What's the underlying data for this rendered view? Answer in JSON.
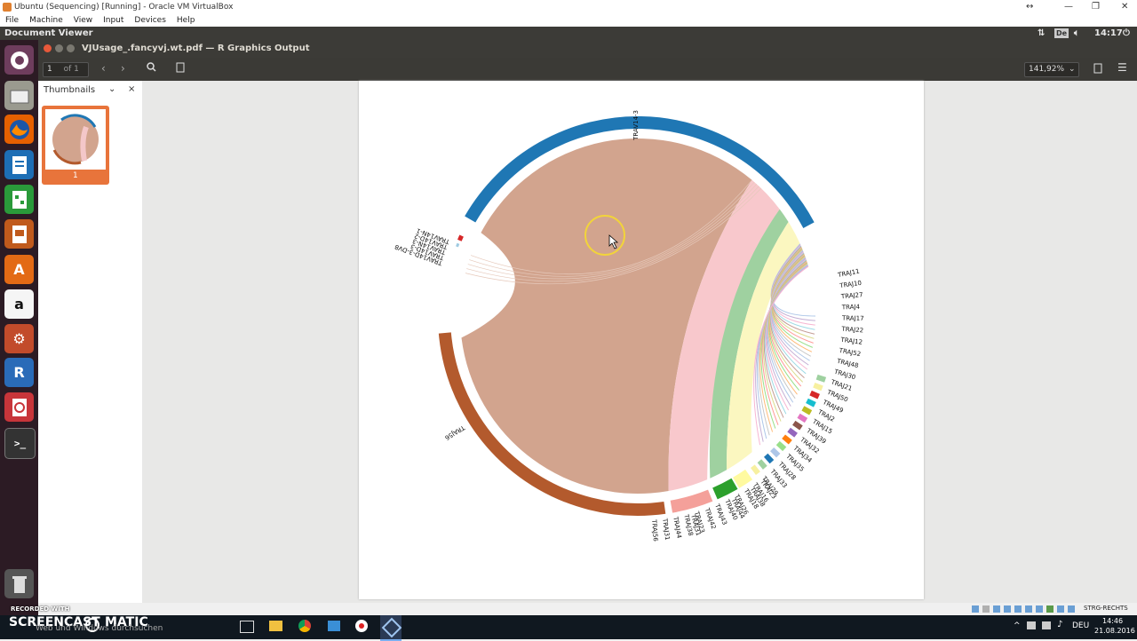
{
  "host_window": {
    "title": "Ubuntu (Sequencing) [Running] - Oracle VM VirtualBox",
    "menu": [
      "File",
      "Machine",
      "View",
      "Input",
      "Devices",
      "Help"
    ]
  },
  "ubuntu_panel": {
    "app_name": "Document Viewer",
    "keyboard_layout": "De",
    "clock": "14:17"
  },
  "launcher": {
    "items": [
      "ubuntu-dash",
      "files",
      "firefox",
      "libreoffice-writer",
      "libreoffice-calc",
      "libreoffice-impress",
      "ubuntu-software",
      "amazon",
      "system-settings",
      "r-app",
      "document-viewer",
      "terminal",
      "trash"
    ]
  },
  "viewer": {
    "window_title": "VJUsage_.fancyvj.wt.pdf — R Graphics Output",
    "page_number": "1",
    "page_of": "of 1",
    "zoom": "141,92%",
    "sidebar_title": "Thumbnails",
    "thumbnail_page_label": "1"
  },
  "chart_data": {
    "type": "chord",
    "top_sectors": [
      {
        "name": "TRAV14-3",
        "color": "#1f77b4"
      },
      {
        "name": "TRAV14N-1",
        "color": "#d62728"
      },
      {
        "name": "TRAV14D-2",
        "color": "#1f77b4"
      },
      {
        "name": "TRAV14D-3-DV8",
        "color": "#9ecae1"
      }
    ],
    "left_labels": [
      "TRAV14N-1",
      "TRAV14D-2",
      "TRAV14N-3",
      "TRAV14D-3",
      "TRAV14D-3-DV8"
    ],
    "bottom_sectors": [
      {
        "name": "TRAJ56",
        "color": "#b35a2d"
      },
      {
        "name": "TRAJ31",
        "color": "#f4a09a"
      },
      {
        "name": "TRAJ44",
        "color": "#2ca02c"
      },
      {
        "name": "TRAJ38",
        "color": "#fffaa0"
      },
      {
        "name": "TRAJ23",
        "color": "#f7f0a0"
      },
      {
        "name": "TRAJ42",
        "color": "#9fd1a0"
      },
      {
        "name": "TRAJ43",
        "color": "#1f77b4"
      },
      {
        "name": "TRAJ40",
        "color": "#aec7e8"
      },
      {
        "name": "TRAJ26",
        "color": "#98df8a"
      },
      {
        "name": "TRAJ16",
        "color": "#ff7f0e"
      },
      {
        "name": "TRAJ29",
        "color": "#9467bd"
      },
      {
        "name": "TRAJ33",
        "color": "#8c564b"
      }
    ],
    "right_labels": [
      "TRAJ11",
      "TRAJ10",
      "TRAJ27",
      "TRAJ4",
      "TRAJ17",
      "TRAJ22",
      "TRAJ12",
      "TRAJ52",
      "TRAJ48",
      "TRAJ30",
      "TRAJ21",
      "TRAJ50",
      "TRAJ49",
      "TRAJ2",
      "TRAJ15",
      "TRAJ39",
      "TRAJ32",
      "TRAJ34",
      "TRAJ35",
      "TRAJ28",
      "TRAJ33",
      "TRAJ29",
      "TRAJ16",
      "TRAJ18",
      "TRAJ26",
      "TRAJ40",
      "TRAJ43",
      "TRAJ42",
      "TRAJ23",
      "TRAJ38",
      "TRAJ44",
      "TRAJ31",
      "TRAJ56"
    ]
  },
  "overlay": {
    "watermark_top": "RECORDED WITH",
    "watermark_brand": "SCREENCAST",
    "watermark_brand2": "MATIC"
  },
  "taskbar": {
    "search_placeholder": "Web und Windows durchsuchen",
    "language": "DEU",
    "time": "14:46",
    "date": "21.08.2016"
  },
  "host_status": {
    "host_key": "STRG-RECHTS"
  }
}
